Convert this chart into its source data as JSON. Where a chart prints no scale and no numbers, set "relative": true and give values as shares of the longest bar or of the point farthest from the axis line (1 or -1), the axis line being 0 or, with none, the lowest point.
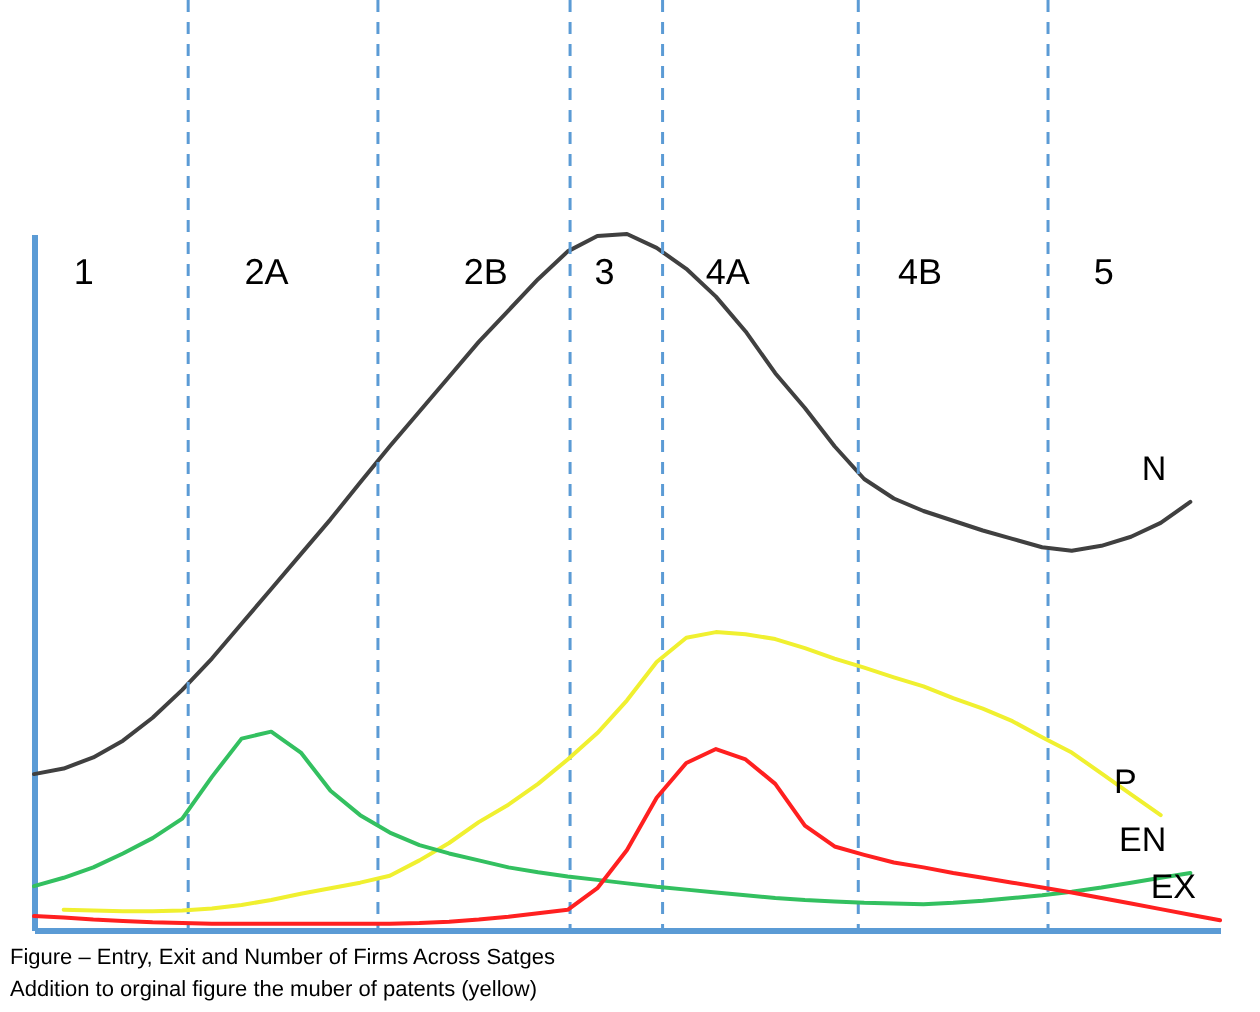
{
  "chart_data": {
    "type": "line",
    "relative": true,
    "marker": "none",
    "line_style": "solid",
    "categories": [
      null,
      null,
      null,
      null,
      null,
      null,
      null,
      null,
      null,
      null,
      null,
      null,
      null,
      null,
      null,
      null,
      null,
      null,
      null,
      null,
      null,
      null,
      null,
      null,
      null,
      null,
      null,
      null,
      null,
      null,
      null,
      null,
      null,
      null,
      null,
      null,
      null,
      null,
      null,
      null,
      null
    ],
    "annotations": [
      "1",
      "2A",
      "2B",
      "3",
      "4A",
      "4B",
      "5",
      "Figure – Entry, Exit and Number of Firms Across Satges",
      "Addition to orginal figure the muber of patents (yellow)"
    ],
    "series": [
      {
        "name": "N",
        "color": "#404040",
        "values": [
          0.224,
          0.232,
          0.248,
          0.272,
          0.305,
          0.345,
          0.39,
          0.44,
          0.49,
          0.54,
          0.59,
          0.643,
          0.695,
          0.745,
          0.795,
          0.845,
          0.89,
          0.935,
          0.975,
          0.997,
          1,
          0.98,
          0.95,
          0.91,
          0.86,
          0.8,
          0.75,
          0.695,
          0.648,
          0.62,
          0.602,
          0.588,
          0.574,
          0.562,
          0.55,
          0.545,
          0.552,
          0.565,
          0.585,
          0.615,
          null
        ]
      },
      {
        "name": "P",
        "color": "#f0f030",
        "values": [
          null,
          0.029,
          0.028,
          0.027,
          0.027,
          0.028,
          0.031,
          0.036,
          0.043,
          0.052,
          0.06,
          0.068,
          0.078,
          0.1,
          0.125,
          0.155,
          0.18,
          0.21,
          0.245,
          0.283,
          0.33,
          0.385,
          0.42,
          0.428,
          0.425,
          0.418,
          0.405,
          0.39,
          0.377,
          0.363,
          0.35,
          0.333,
          0.318,
          0.3,
          0.277,
          0.255,
          0.225,
          0.195,
          0.165,
          null,
          null
        ]
      },
      {
        "name": "EN",
        "color": "#33c060",
        "values": [
          0.063,
          0.075,
          0.09,
          0.11,
          0.132,
          0.16,
          0.22,
          0.275,
          0.285,
          0.255,
          0.2,
          0.165,
          0.14,
          0.122,
          0.11,
          0.1,
          0.09,
          0.083,
          0.077,
          0.072,
          0.067,
          0.062,
          0.058,
          0.054,
          0.05,
          0.046,
          0.043,
          0.041,
          0.039,
          0.038,
          0.037,
          0.039,
          0.042,
          0.046,
          0.05,
          0.055,
          0.061,
          0.068,
          0.075,
          0.082,
          null
        ]
      },
      {
        "name": "EX",
        "color": "#ff2020",
        "values": [
          0.02,
          0.018,
          0.015,
          0.013,
          0.011,
          0.01,
          0.009,
          0.009,
          0.009,
          0.009,
          0.009,
          0.009,
          0.009,
          0.01,
          0.012,
          0.015,
          0.019,
          0.024,
          0.029,
          0.06,
          0.115,
          0.19,
          0.24,
          0.26,
          0.245,
          0.21,
          0.15,
          0.12,
          0.108,
          0.097,
          0.09,
          0.082,
          0.075,
          0.068,
          0.061,
          0.054,
          0.046,
          0.038,
          0.03,
          0.022,
          0.014
        ]
      }
    ]
  }
}
